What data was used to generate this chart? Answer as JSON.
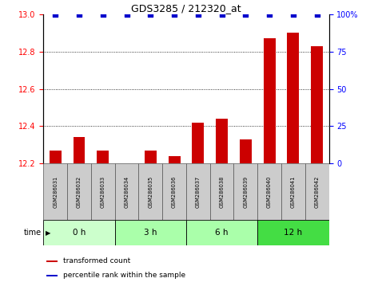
{
  "title": "GDS3285 / 212320_at",
  "samples": [
    "GSM286031",
    "GSM286032",
    "GSM286033",
    "GSM286034",
    "GSM286035",
    "GSM286036",
    "GSM286037",
    "GSM286038",
    "GSM286039",
    "GSM286040",
    "GSM286041",
    "GSM286042"
  ],
  "red_values": [
    12.27,
    12.34,
    12.27,
    12.2,
    12.27,
    12.24,
    12.42,
    12.44,
    12.33,
    12.87,
    12.9,
    12.83
  ],
  "blue_values": [
    100,
    100,
    100,
    100,
    100,
    100,
    100,
    100,
    100,
    100,
    100,
    100
  ],
  "ylim_left": [
    12.2,
    13.0
  ],
  "ylim_right": [
    0,
    100
  ],
  "yticks_left": [
    12.2,
    12.4,
    12.6,
    12.8,
    13.0
  ],
  "yticks_right": [
    0,
    25,
    50,
    75,
    100
  ],
  "groups": [
    {
      "label": "0 h",
      "start": 0,
      "end": 3,
      "color": "#ccffcc"
    },
    {
      "label": "3 h",
      "start": 3,
      "end": 6,
      "color": "#aaffaa"
    },
    {
      "label": "6 h",
      "start": 6,
      "end": 9,
      "color": "#aaffaa"
    },
    {
      "label": "12 h",
      "start": 9,
      "end": 12,
      "color": "#44dd44"
    }
  ],
  "bar_color": "#cc0000",
  "blue_marker_color": "#0000cc",
  "grid_color": "#000000",
  "time_label": "time"
}
